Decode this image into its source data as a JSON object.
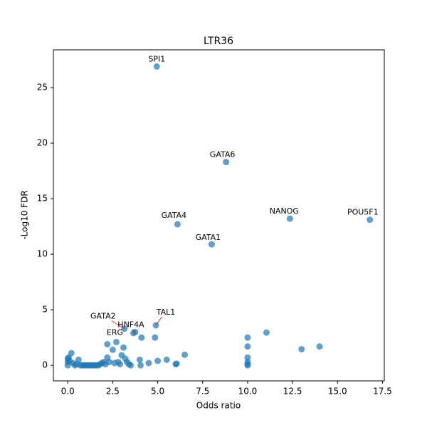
{
  "chart_data": {
    "type": "scatter",
    "title": "LTR36",
    "xlabel": "Odds ratio",
    "ylabel": "-Log10 FDR",
    "xlim": [
      -0.8,
      17.6
    ],
    "ylim": [
      -1.4,
      28.4
    ],
    "xticks": [
      {
        "value": 0,
        "label": "0.0"
      },
      2.5,
      {
        "value": 5,
        "label": "5.0"
      },
      7.5,
      {
        "value": 10,
        "label": "10.0"
      },
      12.5,
      {
        "value": 15,
        "label": "15.0"
      },
      17.5
    ],
    "yticks": [
      0,
      5,
      10,
      15,
      20,
      25
    ],
    "color": "#1f77b4",
    "x": [
      0,
      0,
      0,
      0.05,
      0.2,
      0.1,
      0.3,
      0.4,
      0.5,
      0.6,
      0.7,
      0.8,
      0.9,
      1.0,
      1.1,
      1.2,
      1.3,
      1.4,
      1.5,
      1.6,
      1.7,
      1.8,
      1.9,
      2.0,
      2.1,
      2.2,
      2.2,
      2.3,
      2.5,
      2.6,
      2.7,
      2.8,
      2.9,
      3.0,
      3.1,
      3.15,
      3.2,
      3.3,
      3.4,
      3.5,
      3.65,
      3.75,
      4.0,
      4.05,
      4.1,
      4.5,
      4.85,
      4.9,
      5.0,
      5.5,
      6.0,
      6.05,
      6.5,
      10,
      10,
      10,
      10,
      10,
      10,
      11.05,
      13,
      14,
      4.95,
      8.8,
      12.35,
      16.8,
      6.1,
      8.0
    ],
    "y": [
      0,
      0.3,
      0.6,
      0.7,
      1.1,
      0.4,
      0.2,
      0,
      0.1,
      0.5,
      0,
      0,
      0,
      0,
      0,
      0,
      0,
      0,
      0,
      0,
      0,
      0.1,
      0.2,
      0.3,
      0.1,
      0.7,
      1.9,
      0.3,
      1.4,
      0.2,
      2.1,
      0.3,
      0.1,
      0.9,
      1.6,
      3.3,
      0.6,
      0.3,
      0.1,
      0,
      2.9,
      3.0,
      0.5,
      0,
      2.5,
      0.2,
      2.5,
      3.6,
      0.4,
      0.5,
      0.1,
      0.15,
      0.95,
      0,
      0.1,
      0.3,
      0.7,
      1.7,
      2.5,
      2.95,
      1.45,
      1.7,
      26.9,
      18.3,
      13.2,
      13.1,
      12.7,
      10.9
    ],
    "annotations": [
      {
        "text": "SPI1",
        "x": 4.95,
        "y": 26.9
      },
      {
        "text": "GATA6",
        "x": 8.8,
        "y": 18.3
      },
      {
        "text": "NANOG",
        "x": 12.35,
        "y": 13.2
      },
      {
        "text": "POU5F1",
        "x": 16.8,
        "y": 13.1
      },
      {
        "text": "GATA4",
        "x": 6.1,
        "y": 12.7
      },
      {
        "text": "GATA1",
        "x": 8.0,
        "y": 10.9
      },
      {
        "text": "TAL1",
        "x": 4.9,
        "y": 3.6
      },
      {
        "text": "GATA2",
        "x": 3.15,
        "y": 3.3
      },
      {
        "text": "HNF4A",
        "x": 3.75,
        "y": 3.0
      },
      {
        "text": "ERG",
        "x": 2.7,
        "y": 2.1
      }
    ]
  }
}
